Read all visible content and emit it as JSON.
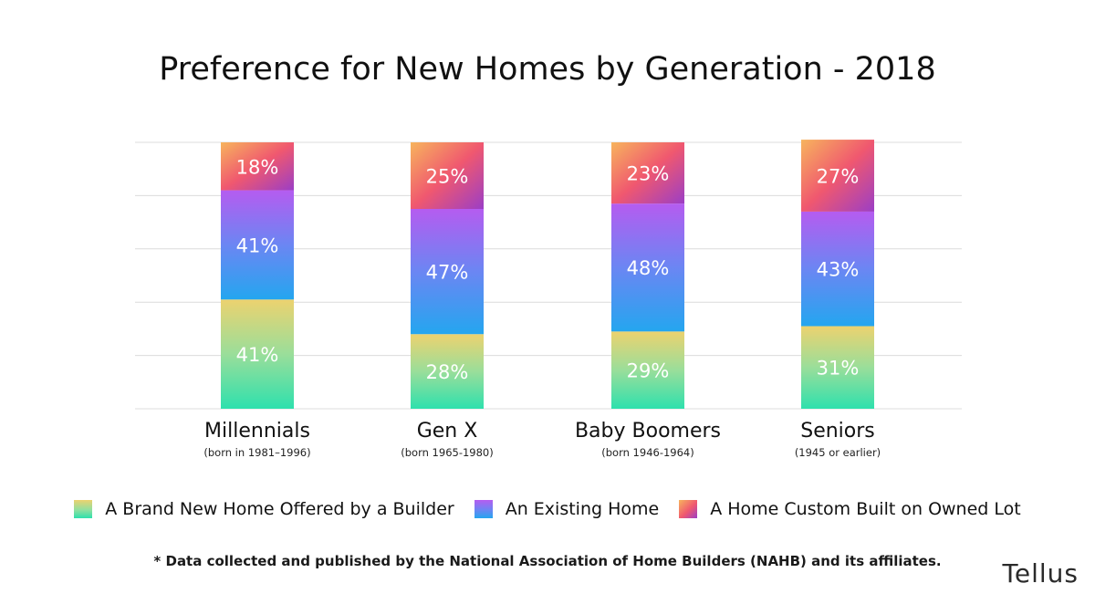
{
  "chart_data": {
    "type": "bar",
    "stacked": true,
    "title": "Preference for New Homes by Generation - 2018",
    "categories": [
      "Millennials",
      "Gen X",
      "Baby Boomers",
      "Seniors"
    ],
    "category_subtitles": [
      "(born in 1981–1996)",
      "(born 1965-1980)",
      "(born 1946-1964)",
      "(1945 or earlier)"
    ],
    "series": [
      {
        "name": "A Brand New Home Offered by a Builder",
        "values": [
          41,
          28,
          29,
          31
        ],
        "labels": [
          "41%",
          "28%",
          "29%",
          "31%"
        ]
      },
      {
        "name": "An Existing Home",
        "values": [
          41,
          47,
          48,
          43
        ],
        "labels": [
          "41%",
          "47%",
          "48%",
          "43%"
        ]
      },
      {
        "name": "A Home Custom Built on Owned Lot",
        "values": [
          18,
          25,
          23,
          27
        ],
        "labels": [
          "18%",
          "25%",
          "23%",
          "27%"
        ]
      }
    ],
    "ylim": [
      0,
      100
    ],
    "grid": true,
    "legend_position": "bottom",
    "colors": {
      "new_home": [
        "#ecd26f",
        "#2ee0ad"
      ],
      "existing_home": [
        "#b55cf0",
        "#24a6ef"
      ],
      "custom_home": [
        "#f7b45d",
        "#f0586f",
        "#9b3ec6"
      ]
    }
  },
  "footnote": "* Data collected and published by the National Association of Home Builders (NAHB) and its affiliates.",
  "brand": "Tellus"
}
